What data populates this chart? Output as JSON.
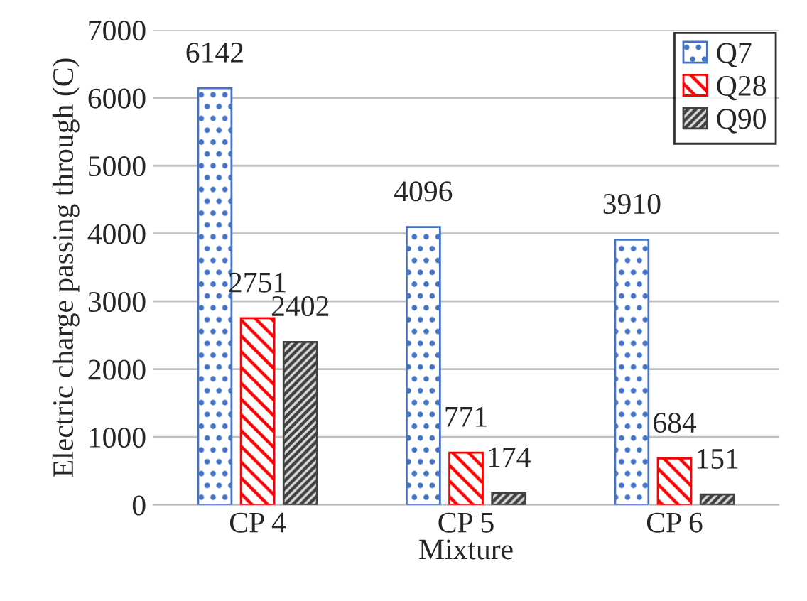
{
  "chart_data": {
    "type": "bar",
    "xlabel": "Mixture",
    "ylabel": "Electric charge passing through (C)",
    "categories": [
      "CP 4",
      "CP 5",
      "CP 6"
    ],
    "series": [
      {
        "name": "Q7",
        "color": "#4472c4",
        "values": [
          6142,
          4096,
          3910
        ]
      },
      {
        "name": "Q28",
        "color": "#ff0000",
        "values": [
          2751,
          771,
          684
        ]
      },
      {
        "name": "Q90",
        "color": "#404040",
        "values": [
          2402,
          174,
          151
        ]
      }
    ],
    "ylim": [
      0,
      7000
    ],
    "yticks": [
      0,
      1000,
      2000,
      3000,
      4000,
      5000,
      6000,
      7000
    ],
    "grid": "y",
    "legend": "top right",
    "data_labels": true
  }
}
